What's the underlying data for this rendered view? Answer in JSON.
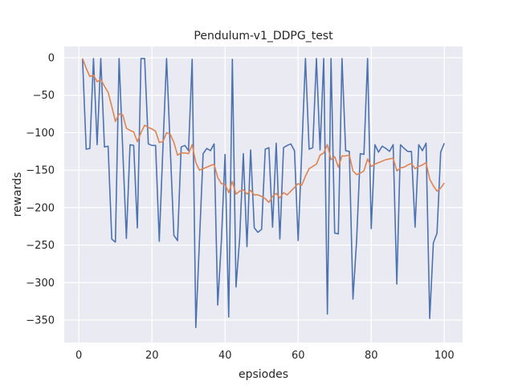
{
  "chart_data": {
    "type": "line",
    "title": "Pendulum-v1_DDPG_test",
    "xlabel": "epsiodes",
    "ylabel": "rewards",
    "xlim": [
      -4,
      105
    ],
    "ylim": [
      -380,
      15
    ],
    "xticks": [
      0,
      20,
      40,
      60,
      80,
      100
    ],
    "yticks": [
      0,
      -50,
      -100,
      -150,
      -200,
      -250,
      -300,
      -350
    ],
    "grid": true,
    "legend": "none",
    "x": [
      1,
      2,
      3,
      4,
      5,
      6,
      7,
      8,
      9,
      10,
      11,
      12,
      13,
      14,
      15,
      16,
      17,
      18,
      19,
      20,
      21,
      22,
      23,
      24,
      25,
      26,
      27,
      28,
      29,
      30,
      31,
      32,
      33,
      34,
      35,
      36,
      37,
      38,
      39,
      40,
      41,
      42,
      43,
      44,
      45,
      46,
      47,
      48,
      49,
      50,
      51,
      52,
      53,
      54,
      55,
      56,
      57,
      58,
      59,
      60,
      61,
      62,
      63,
      64,
      65,
      66,
      67,
      68,
      69,
      70,
      71,
      72,
      73,
      74,
      75,
      76,
      77,
      78,
      79,
      80,
      81,
      82,
      83,
      84,
      85,
      86,
      87,
      88,
      89,
      90,
      91,
      92,
      93,
      94,
      95,
      96,
      97,
      98,
      99,
      100
    ],
    "series": [
      {
        "color": "#4c72b0",
        "values": [
          -1,
          -122,
          -121,
          -1,
          -116,
          -1,
          -119,
          -118,
          -242,
          -246,
          -1,
          -122,
          -241,
          -116,
          -117,
          -227,
          -1,
          -1,
          -115,
          -117,
          -117,
          -245,
          -120,
          -1,
          -120,
          -237,
          -244,
          -119,
          -117,
          -124,
          -2,
          -360,
          -244,
          -128,
          -121,
          -124,
          -115,
          -330,
          -244,
          -129,
          -346,
          -2,
          -306,
          -241,
          -128,
          -252,
          -123,
          -227,
          -233,
          -229,
          -122,
          -120,
          -226,
          -114,
          -242,
          -120,
          -117,
          -115,
          -124,
          -244,
          -124,
          -1,
          -122,
          -120,
          -1,
          -123,
          -1,
          -342,
          -1,
          -234,
          -235,
          -1,
          -124,
          -125,
          -322,
          -244,
          -128,
          -129,
          -1,
          -228,
          -116,
          -126,
          -118,
          -121,
          -125,
          -116,
          -302,
          -116,
          -121,
          -125,
          -125,
          -226,
          -116,
          -124,
          -114,
          -348,
          -247,
          -234,
          -126,
          -114
        ]
      },
      {
        "color": "#dd8452",
        "values": [
          -1,
          -14,
          -25,
          -23,
          -32,
          -29,
          -38,
          -46,
          -65,
          -85,
          -75,
          -76,
          -94,
          -97,
          -99,
          -112,
          -100,
          -90,
          -93,
          -95,
          -98,
          -113,
          -112,
          -100,
          -102,
          -113,
          -130,
          -127,
          -127,
          -128,
          -116,
          -140,
          -150,
          -148,
          -146,
          -144,
          -142,
          -160,
          -168,
          -169,
          -180,
          -165,
          -182,
          -178,
          -176,
          -182,
          -177,
          -183,
          -183,
          -185,
          -188,
          -193,
          -185,
          -181,
          -187,
          -180,
          -183,
          -178,
          -173,
          -168,
          -170,
          -158,
          -148,
          -145,
          -142,
          -130,
          -127,
          -116,
          -136,
          -132,
          -146,
          -131,
          -131,
          -130,
          -151,
          -156,
          -154,
          -151,
          -135,
          -145,
          -142,
          -140,
          -138,
          -136,
          -135,
          -134,
          -151,
          -147,
          -146,
          -143,
          -141,
          -148,
          -145,
          -143,
          -140,
          -162,
          -171,
          -178,
          -174,
          -167
        ]
      }
    ]
  }
}
